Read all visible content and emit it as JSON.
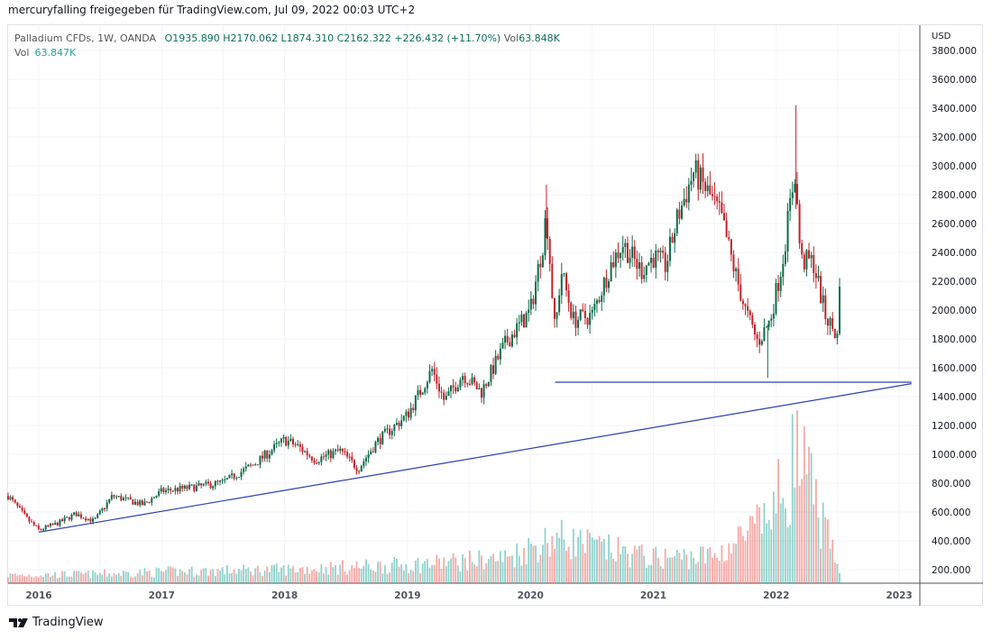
{
  "caption": "mercuryfalling freigegeben für TradingView.com, Jul 09, 2022 00:03 UTC+2",
  "legend": {
    "symbol": "Palladium CFDs, 1W, OANDA",
    "open": "O1935.890",
    "high": "H2170.062",
    "low": "L1874.310",
    "close": "C2162.322",
    "change": "+226.432 (+11.70%)",
    "vol_label": "Vol",
    "vol_value": "63.848K",
    "vol2_label": "Vol",
    "vol2_value": "63.847K"
  },
  "brand": "TradingView",
  "colors": {
    "up": "#26a69a",
    "down": "#ef5350",
    "upCandle": "#0b6b47",
    "downCandle": "#c2212b",
    "trendline": "#2940b8",
    "grid": "#f0f3fa"
  },
  "chart_data": {
    "type": "candlestick",
    "title": "Palladium CFDs, 1W, OANDA",
    "currency": "USD",
    "ylim": [
      100,
      3900
    ],
    "yticks": [
      "3800.000",
      "3600.000",
      "3400.000",
      "3200.000",
      "3000.000",
      "2800.000",
      "2600.000",
      "2400.000",
      "2200.000",
      "2000.000",
      "1800.000",
      "1600.000",
      "1400.000",
      "1200.000",
      "1000.000",
      "800.000",
      "600.000",
      "400.000",
      "200.000"
    ],
    "xticks": [
      "2016",
      "2017",
      "2018",
      "2019",
      "2020",
      "2021",
      "2022",
      "2023"
    ],
    "xlim": [
      2015.75,
      2023.18
    ],
    "close_path": [
      [
        2015.75,
        712
      ],
      [
        2015.9,
        556
      ],
      [
        2016.0,
        475
      ],
      [
        2016.15,
        520
      ],
      [
        2016.3,
        587
      ],
      [
        2016.45,
        537
      ],
      [
        2016.6,
        712
      ],
      [
        2016.85,
        650
      ],
      [
        2017.0,
        744
      ],
      [
        2017.3,
        775
      ],
      [
        2017.5,
        806
      ],
      [
        2017.75,
        931
      ],
      [
        2018.0,
        1100
      ],
      [
        2018.1,
        1060
      ],
      [
        2018.25,
        962
      ],
      [
        2018.45,
        1025
      ],
      [
        2018.6,
        900
      ],
      [
        2018.75,
        1087
      ],
      [
        2019.0,
        1275
      ],
      [
        2019.2,
        1587
      ],
      [
        2019.3,
        1369
      ],
      [
        2019.45,
        1556
      ],
      [
        2019.6,
        1431
      ],
      [
        2019.8,
        1775
      ],
      [
        2020.0,
        1994
      ],
      [
        2020.1,
        2462
      ],
      [
        2020.13,
        2681
      ],
      [
        2020.2,
        1837
      ],
      [
        2020.25,
        2275
      ],
      [
        2020.35,
        1931
      ],
      [
        2020.5,
        1962
      ],
      [
        2020.65,
        2306
      ],
      [
        2020.75,
        2462
      ],
      [
        2020.9,
        2275
      ],
      [
        2021.0,
        2369
      ],
      [
        2021.1,
        2306
      ],
      [
        2021.2,
        2650
      ],
      [
        2021.33,
        2962
      ],
      [
        2021.45,
        2806
      ],
      [
        2021.55,
        2650
      ],
      [
        2021.65,
        2306
      ],
      [
        2021.75,
        1994
      ],
      [
        2021.85,
        1775
      ],
      [
        2021.95,
        1931
      ],
      [
        2022.05,
        2337
      ],
      [
        2022.15,
        2962
      ],
      [
        2022.2,
        2337
      ],
      [
        2022.3,
        2337
      ],
      [
        2022.4,
        1962
      ],
      [
        2022.5,
        1806
      ],
      [
        2022.52,
        2162
      ]
    ],
    "volume_path_k": [
      [
        2015.75,
        35
      ],
      [
        2016.5,
        40
      ],
      [
        2017.0,
        50
      ],
      [
        2018.0,
        60
      ],
      [
        2019.0,
        80
      ],
      [
        2019.8,
        110
      ],
      [
        2020.2,
        200
      ],
      [
        2020.6,
        150
      ],
      [
        2021.0,
        110
      ],
      [
        2021.5,
        120
      ],
      [
        2021.9,
        260
      ],
      [
        2022.1,
        450
      ],
      [
        2022.15,
        580
      ],
      [
        2022.3,
        380
      ],
      [
        2022.5,
        64
      ]
    ],
    "trendlines": [
      {
        "name": "support-horizontal",
        "from": [
          2020.2,
          1500
        ],
        "to": [
          2023.1,
          1500
        ]
      },
      {
        "name": "support-rising",
        "from": [
          2016.0,
          460
        ],
        "to": [
          2023.1,
          1490
        ]
      }
    ]
  }
}
